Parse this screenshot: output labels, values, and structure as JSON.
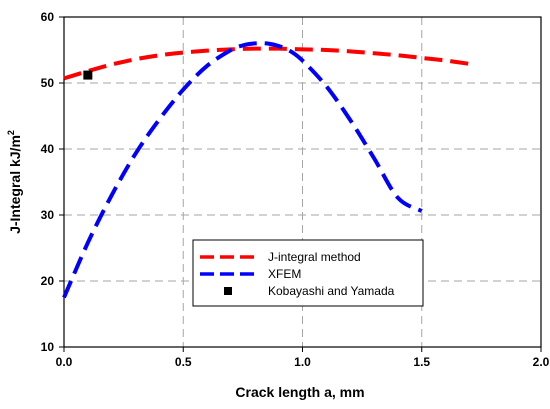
{
  "chart_data": {
    "type": "line",
    "xlabel": "Crack length a, mm",
    "ylabel_main": "J-Integral  kJ/m",
    "ylabel_sup": "2",
    "xlim": [
      0.0,
      2.0
    ],
    "ylim": [
      10,
      60
    ],
    "xticks": [
      "0.0",
      "0.5",
      "1.0",
      "1.5",
      "2.0"
    ],
    "yticks": [
      "10",
      "20",
      "30",
      "40",
      "50",
      "60"
    ],
    "grid": "dashed-gray",
    "legend_position": "lower-center",
    "series": [
      {
        "name": "J-integral method",
        "style": "dashed",
        "color": "#ff0000",
        "x": [
          0.0,
          0.1,
          0.2,
          0.3,
          0.4,
          0.5,
          0.6,
          0.7,
          0.8,
          0.9,
          1.0,
          1.1,
          1.2,
          1.3,
          1.4,
          1.5,
          1.6,
          1.7
        ],
        "y": [
          50.7,
          51.8,
          52.8,
          53.6,
          54.2,
          54.6,
          54.9,
          55.1,
          55.2,
          55.2,
          55.1,
          55.0,
          54.8,
          54.5,
          54.2,
          53.8,
          53.4,
          52.9
        ]
      },
      {
        "name": "XFEM",
        "style": "dashed",
        "color": "#0000ff",
        "x": [
          0.0,
          0.1,
          0.2,
          0.3,
          0.4,
          0.5,
          0.6,
          0.7,
          0.75,
          0.8,
          0.85,
          0.9,
          0.95,
          1.0,
          1.1,
          1.2,
          1.3,
          1.4,
          1.5
        ],
        "y": [
          17.5,
          25.8,
          33.0,
          39.3,
          44.5,
          49.0,
          52.6,
          55.0,
          55.7,
          56.0,
          56.0,
          55.6,
          54.8,
          53.4,
          49.5,
          44.4,
          38.6,
          32.6,
          30.6
        ]
      },
      {
        "name": "Kobayashi and Yamada",
        "style": "marker-square",
        "color": "#000000",
        "x": [
          0.1
        ],
        "y": [
          51.2
        ]
      }
    ]
  }
}
